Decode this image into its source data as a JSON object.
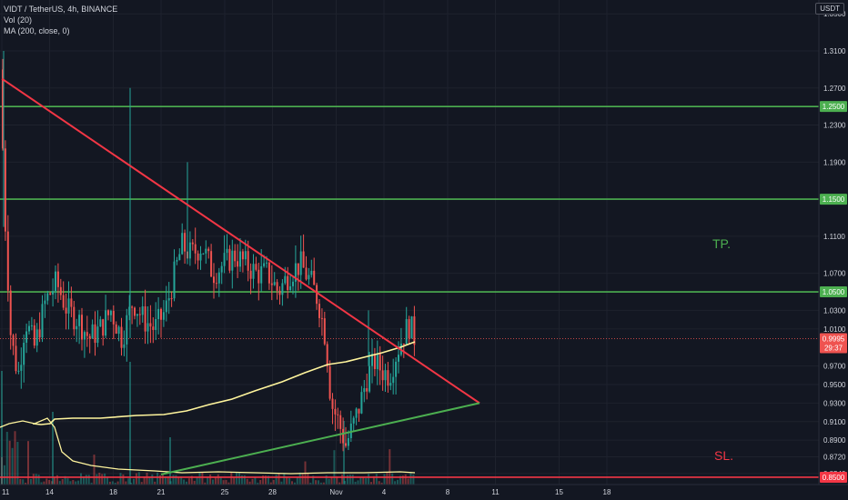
{
  "legend": {
    "symbol": "VIDT / TetherUS, 4h, BINANCE",
    "volume": "Vol (20)",
    "ma": "MA (200, close, 0)"
  },
  "currency_label": "USDT",
  "annotations": {
    "tp": "TP.",
    "sl": "SL."
  },
  "colors": {
    "background": "#131722",
    "up_candle": "#26a69a",
    "down_candle": "#ef5350",
    "resistance_line": "#f23645",
    "support_trend": "#4caf50",
    "horizontal_level": "#4caf50",
    "ma_line": "#fff59d",
    "volume_ma": "#fff59d"
  },
  "chart_data": {
    "type": "candlestick",
    "price_axis_ticks": [
      "1.3500",
      "1.3100",
      "1.2700",
      "1.2300",
      "1.1900",
      "1.1100",
      "1.0700",
      "1.0300",
      "1.0100",
      "0.9700",
      "0.9500",
      "0.9300",
      "0.9100",
      "0.8900",
      "0.8720",
      "0.8540"
    ],
    "time_axis_ticks": [
      "11",
      "14",
      "18",
      "21",
      "25",
      "28",
      "Nov",
      "4",
      "8",
      "11",
      "15",
      "18"
    ],
    "price_levels": [
      {
        "label": "1.2500",
        "price": 1.25,
        "color": "#4caf50"
      },
      {
        "label": "1.1500",
        "price": 1.15,
        "color": "#4caf50"
      },
      {
        "label": "1.0500",
        "price": 1.05,
        "color": "#4caf50"
      },
      {
        "label": "0.8500",
        "price": 0.85,
        "color": "#f23645"
      }
    ],
    "current_price": {
      "label": "0.9995",
      "countdown": "29:37",
      "price": 0.9995
    },
    "trendlines": [
      {
        "name": "descending-resistance",
        "start": {
          "date": "Oct 11",
          "price": 1.28
        },
        "end": {
          "date": "Nov 10",
          "price": 0.93
        }
      },
      {
        "name": "ascending-support",
        "start": {
          "date": "Oct 21",
          "price": 0.853
        },
        "end": {
          "date": "Nov 10",
          "price": 0.93
        }
      }
    ],
    "y_range": [
      0.847,
      1.36
    ]
  }
}
